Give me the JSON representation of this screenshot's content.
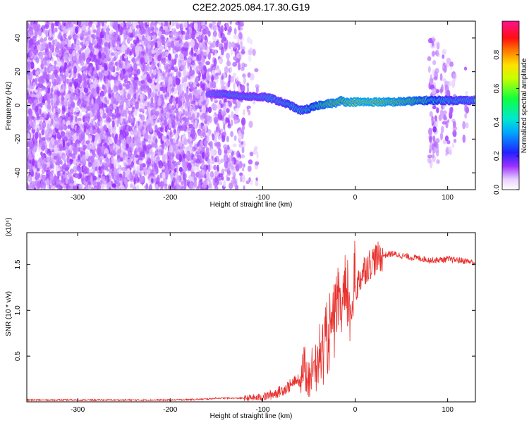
{
  "title": "C2E2.2025.084.17.30.G19",
  "colors": {
    "noise": "#7a3cf0",
    "line": "#e8302c",
    "axis": "#000000"
  },
  "chart_data": [
    {
      "type": "heatmap",
      "name": "spectrogram",
      "xlabel": "Height of straight line (km)",
      "ylabel": "Frequency (Hz)",
      "xlim": [
        -355,
        130
      ],
      "ylim": [
        -50,
        50
      ],
      "xticks": [
        -300,
        -200,
        -100,
        0,
        100
      ],
      "xtick_labels": [
        "-300",
        "-200",
        "-100",
        "0",
        "100"
      ],
      "yticks": [
        -40,
        -20,
        0,
        20,
        40
      ],
      "ytick_labels": [
        "-40",
        "-20",
        "0",
        "20",
        "40"
      ],
      "colorbar": {
        "label": "Normalized spectral amplitude",
        "range": [
          0,
          1
        ],
        "ticks": [
          0,
          0.2,
          0.4,
          0.6,
          0.8
        ],
        "tick_labels": [
          "0.0",
          "0.2",
          "0.4",
          "0.6",
          "0.8"
        ],
        "colormap": "rainbow"
      },
      "noise_regions": [
        {
          "x": [
            -355,
            -160
          ],
          "y": [
            -50,
            50
          ],
          "density": 1.0
        },
        {
          "x": [
            -160,
            -120
          ],
          "y": [
            -50,
            50
          ],
          "density": 0.45
        },
        {
          "x": [
            -120,
            -105
          ],
          "y": [
            -50,
            50
          ],
          "density": 0.1
        },
        {
          "x": [
            80,
            90
          ],
          "y": [
            -35,
            40
          ],
          "density": 0.5
        },
        {
          "x": [
            92,
            100
          ],
          "y": [
            -30,
            35
          ],
          "density": 0.35
        },
        {
          "x": [
            100,
            108
          ],
          "y": [
            -28,
            30
          ],
          "density": 0.3
        },
        {
          "x": [
            117,
            122
          ],
          "y": [
            -20,
            25
          ],
          "density": 0.2
        }
      ],
      "ridge": {
        "x": [
          -160,
          -140,
          -120,
          -100,
          -90,
          -80,
          -70,
          -60,
          -50,
          -40,
          -30,
          -20,
          -15,
          -10,
          0,
          20,
          40,
          60,
          80,
          100,
          130
        ],
        "y": [
          7,
          6.5,
          5.5,
          5,
          4,
          2,
          0,
          -3,
          -2,
          0,
          1,
          1.5,
          3,
          2,
          2,
          2,
          2,
          2.5,
          3,
          3,
          3
        ],
        "amplitude": [
          0.35,
          0.45,
          0.45,
          0.45,
          0.5,
          0.5,
          0.55,
          0.55,
          0.6,
          0.7,
          0.8,
          0.85,
          0.85,
          0.9,
          0.95,
          0.95,
          0.9,
          0.8,
          0.65,
          0.55,
          0.5
        ]
      }
    },
    {
      "type": "line",
      "name": "snr",
      "xlabel": "Height of straight line (km)",
      "ylabel": "SNR (10 * v/v)",
      "yscale_label": "(x10⁴)",
      "xlim": [
        -355,
        130
      ],
      "ylim": [
        0,
        1.85
      ],
      "xticks": [
        -300,
        -200,
        -100,
        0,
        100
      ],
      "xtick_labels": [
        "-300",
        "-200",
        "-100",
        "0",
        "100"
      ],
      "yticks": [
        0.5,
        1.0,
        1.5
      ],
      "ytick_labels": [
        "0.5",
        "1.0",
        "1.5"
      ],
      "series": [
        {
          "color": "#e8302c",
          "x": [
            -355,
            -300,
            -200,
            -160,
            -150,
            -120,
            -100,
            -90,
            -80,
            -70,
            -60,
            -55,
            -50,
            -45,
            -40,
            -35,
            -30,
            -25,
            -20,
            -15,
            -10,
            -5,
            0,
            5,
            10,
            20,
            30,
            40,
            50,
            60,
            70,
            80,
            90,
            100,
            110,
            120,
            130
          ],
          "y": [
            0.02,
            0.02,
            0.02,
            0.03,
            0.04,
            0.04,
            0.05,
            0.08,
            0.12,
            0.18,
            0.25,
            0.35,
            0.3,
            0.35,
            0.5,
            0.55,
            0.7,
            0.85,
            0.95,
            1.05,
            1.1,
            1.0,
            1.2,
            1.35,
            1.45,
            1.55,
            1.6,
            1.62,
            1.6,
            1.58,
            1.57,
            1.55,
            1.55,
            1.56,
            1.55,
            1.54,
            1.52
          ]
        }
      ]
    }
  ]
}
